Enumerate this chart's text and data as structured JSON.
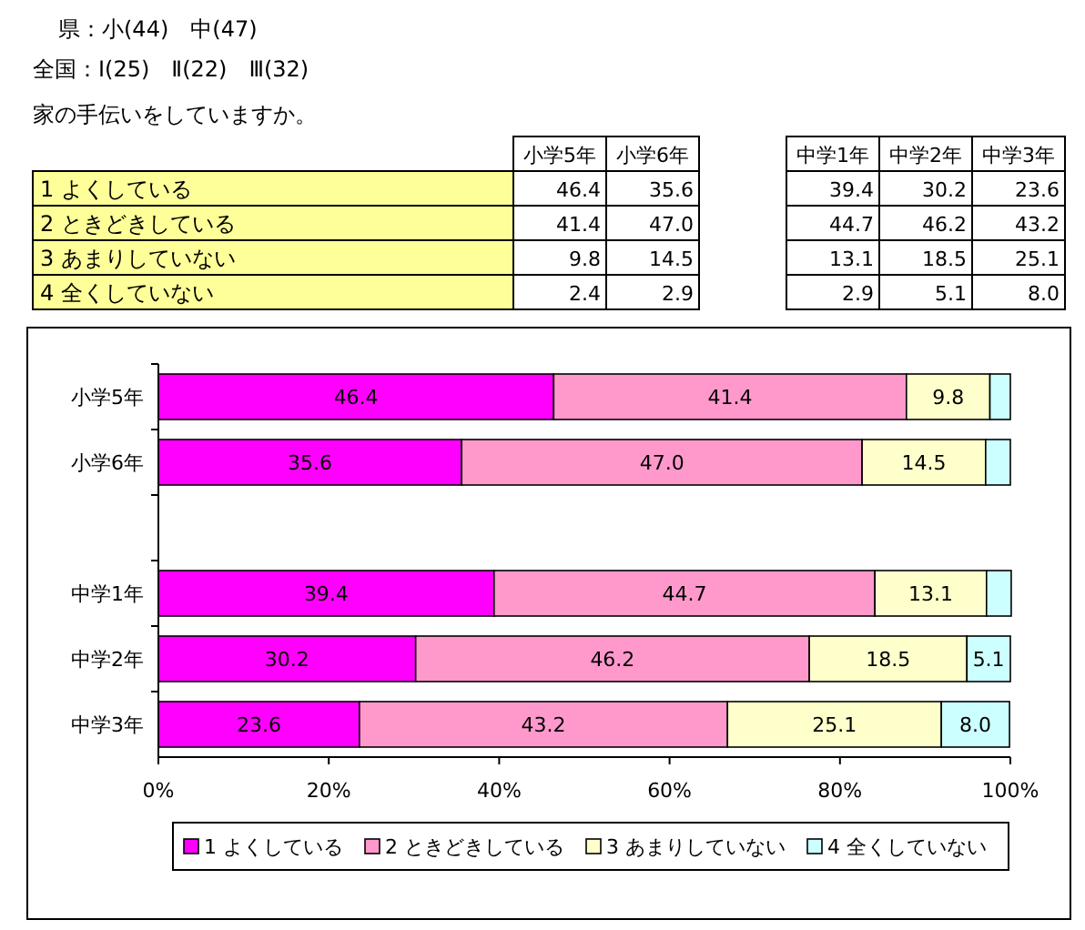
{
  "chart_data": [
    {
      "type": "other",
      "title": "家の手伝いをしていますか。",
      "annotations": [
        "県：小(44)　中(47)",
        "全国：Ⅰ(25)　Ⅱ(22)　Ⅲ(32)"
      ],
      "categories": [
        "小学5年",
        "小学6年",
        null,
        "中学1年",
        "中学2年",
        "中学3年"
      ],
      "series": [
        {
          "name": "1 よくしている",
          "values": [
            46.4,
            35.6,
            null,
            39.4,
            30.2,
            23.6
          ],
          "value_labels": [
            "46.4",
            "35.6",
            null,
            "39.4",
            "30.2",
            "23.6"
          ]
        },
        {
          "name": "2 ときどきしている",
          "values": [
            41.4,
            47.0,
            null,
            44.7,
            46.2,
            43.2
          ],
          "value_labels": [
            "41.4",
            "47.0",
            null,
            "44.7",
            "46.2",
            "43.2"
          ]
        },
        {
          "name": "3 あまりしていない",
          "values": [
            9.8,
            14.5,
            null,
            13.1,
            18.5,
            25.1
          ],
          "value_labels": [
            "9.8",
            "14.5",
            null,
            "13.1",
            "18.5",
            "25.1"
          ]
        },
        {
          "name": "4 全くしていない",
          "values": [
            2.4,
            2.9,
            null,
            2.9,
            5.1,
            8.0
          ],
          "value_labels": [
            "2.4",
            "2.9",
            null,
            "2.9",
            "5.1",
            "8.0"
          ]
        }
      ]
    },
    {
      "type": "bar",
      "orientation": "horizontal",
      "stacked": true,
      "categories": [
        "小学5年",
        "小学6年",
        null,
        "中学1年",
        "中学2年",
        "中学3年"
      ],
      "series": [
        {
          "name": "1 よくしている",
          "color": "#ff00ff",
          "values": [
            46.4,
            35.6,
            null,
            39.4,
            30.2,
            23.6
          ],
          "value_labels": [
            "46.4",
            "35.6",
            null,
            "39.4",
            "30.2",
            "23.6"
          ]
        },
        {
          "name": "2 ときどきしている",
          "color": "#ff99cc",
          "values": [
            41.4,
            47.0,
            null,
            44.7,
            46.2,
            43.2
          ],
          "value_labels": [
            "41.4",
            "47.0",
            null,
            "44.7",
            "46.2",
            "43.2"
          ]
        },
        {
          "name": "3 あまりしていない",
          "color": "#ffffcc",
          "values": [
            9.8,
            14.5,
            null,
            13.1,
            18.5,
            25.1
          ],
          "value_labels": [
            "9.8",
            "14.5",
            null,
            "13.1",
            "18.5",
            "25.1"
          ]
        },
        {
          "name": "4 全くしていない",
          "color": "#ccffff",
          "values": [
            2.4,
            2.9,
            null,
            2.9,
            5.1,
            8.0
          ],
          "value_labels": [
            null,
            null,
            null,
            null,
            "5.1",
            "8.0"
          ]
        }
      ],
      "xlim": [
        0,
        100
      ],
      "xticks": [
        {
          "value": 0,
          "label": "0%"
        },
        {
          "value": 20,
          "label": "20%"
        },
        {
          "value": 40,
          "label": "40%"
        },
        {
          "value": 60,
          "label": "60%"
        },
        {
          "value": 80,
          "label": "80%"
        },
        {
          "value": 100,
          "label": "100%"
        }
      ],
      "grid": false,
      "legend": "bottom"
    }
  ]
}
